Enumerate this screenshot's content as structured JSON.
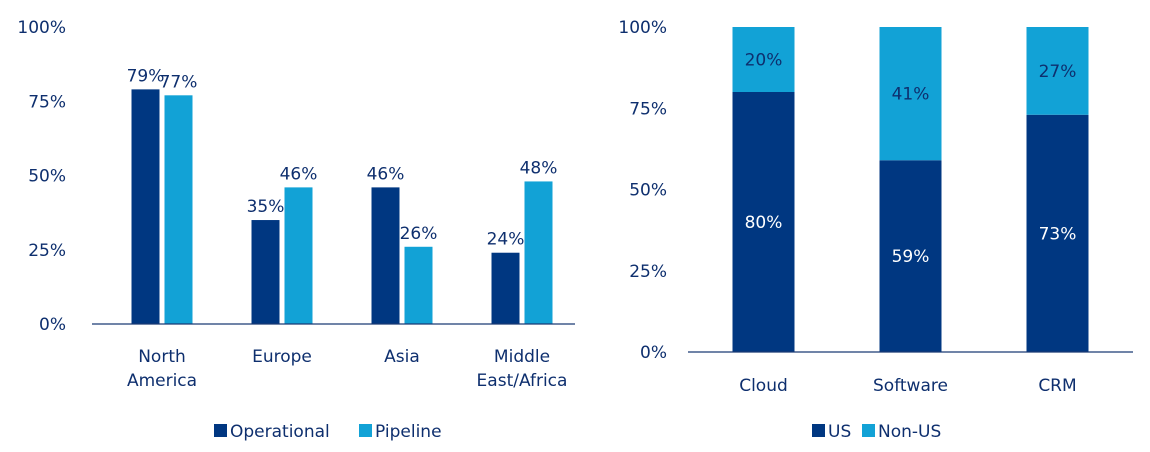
{
  "colors": {
    "dark_blue": "#003781",
    "light_blue": "#12a2d6",
    "text": "#0e2f6e",
    "inner_label": "#ffffff"
  },
  "chart_data": [
    {
      "type": "bar",
      "title": "",
      "xlabel": "",
      "ylabel": "",
      "categories": [
        [
          "North",
          "America"
        ],
        [
          "Europe"
        ],
        [
          "Asia"
        ],
        [
          "Middle",
          "East/Africa"
        ]
      ],
      "series": [
        {
          "name": "Operational",
          "color": "#003781",
          "values": [
            79,
            35,
            46,
            24
          ],
          "labels": [
            "79%",
            "35%",
            "46%",
            "24%"
          ]
        },
        {
          "name": "Pipeline",
          "color": "#12a2d6",
          "values": [
            77,
            46,
            26,
            48
          ],
          "labels": [
            "77%",
            "46%",
            "26%",
            "48%"
          ]
        }
      ],
      "ylim": [
        0,
        100
      ],
      "yticks": [
        0,
        25,
        50,
        75,
        100
      ],
      "ytick_labels": [
        "0%",
        "25%",
        "50%",
        "75%",
        "100%"
      ],
      "grid": false,
      "legend_position": "bottom"
    },
    {
      "type": "bar",
      "stacked": true,
      "title": "",
      "xlabel": "",
      "ylabel": "",
      "categories": [
        [
          "Cloud"
        ],
        [
          "Software"
        ],
        [
          "CRM"
        ]
      ],
      "series": [
        {
          "name": "US",
          "color": "#003781",
          "values": [
            80,
            59,
            73
          ],
          "labels": [
            "80%",
            "59%",
            "73%"
          ]
        },
        {
          "name": "Non-US",
          "color": "#12a2d6",
          "values": [
            20,
            41,
            27
          ],
          "labels": [
            "20%",
            "41%",
            "27%"
          ]
        }
      ],
      "ylim": [
        0,
        100
      ],
      "yticks": [
        0,
        25,
        50,
        75,
        100
      ],
      "ytick_labels": [
        "0%",
        "25%",
        "50%",
        "75%",
        "100%"
      ],
      "grid": false,
      "legend_position": "bottom"
    }
  ]
}
